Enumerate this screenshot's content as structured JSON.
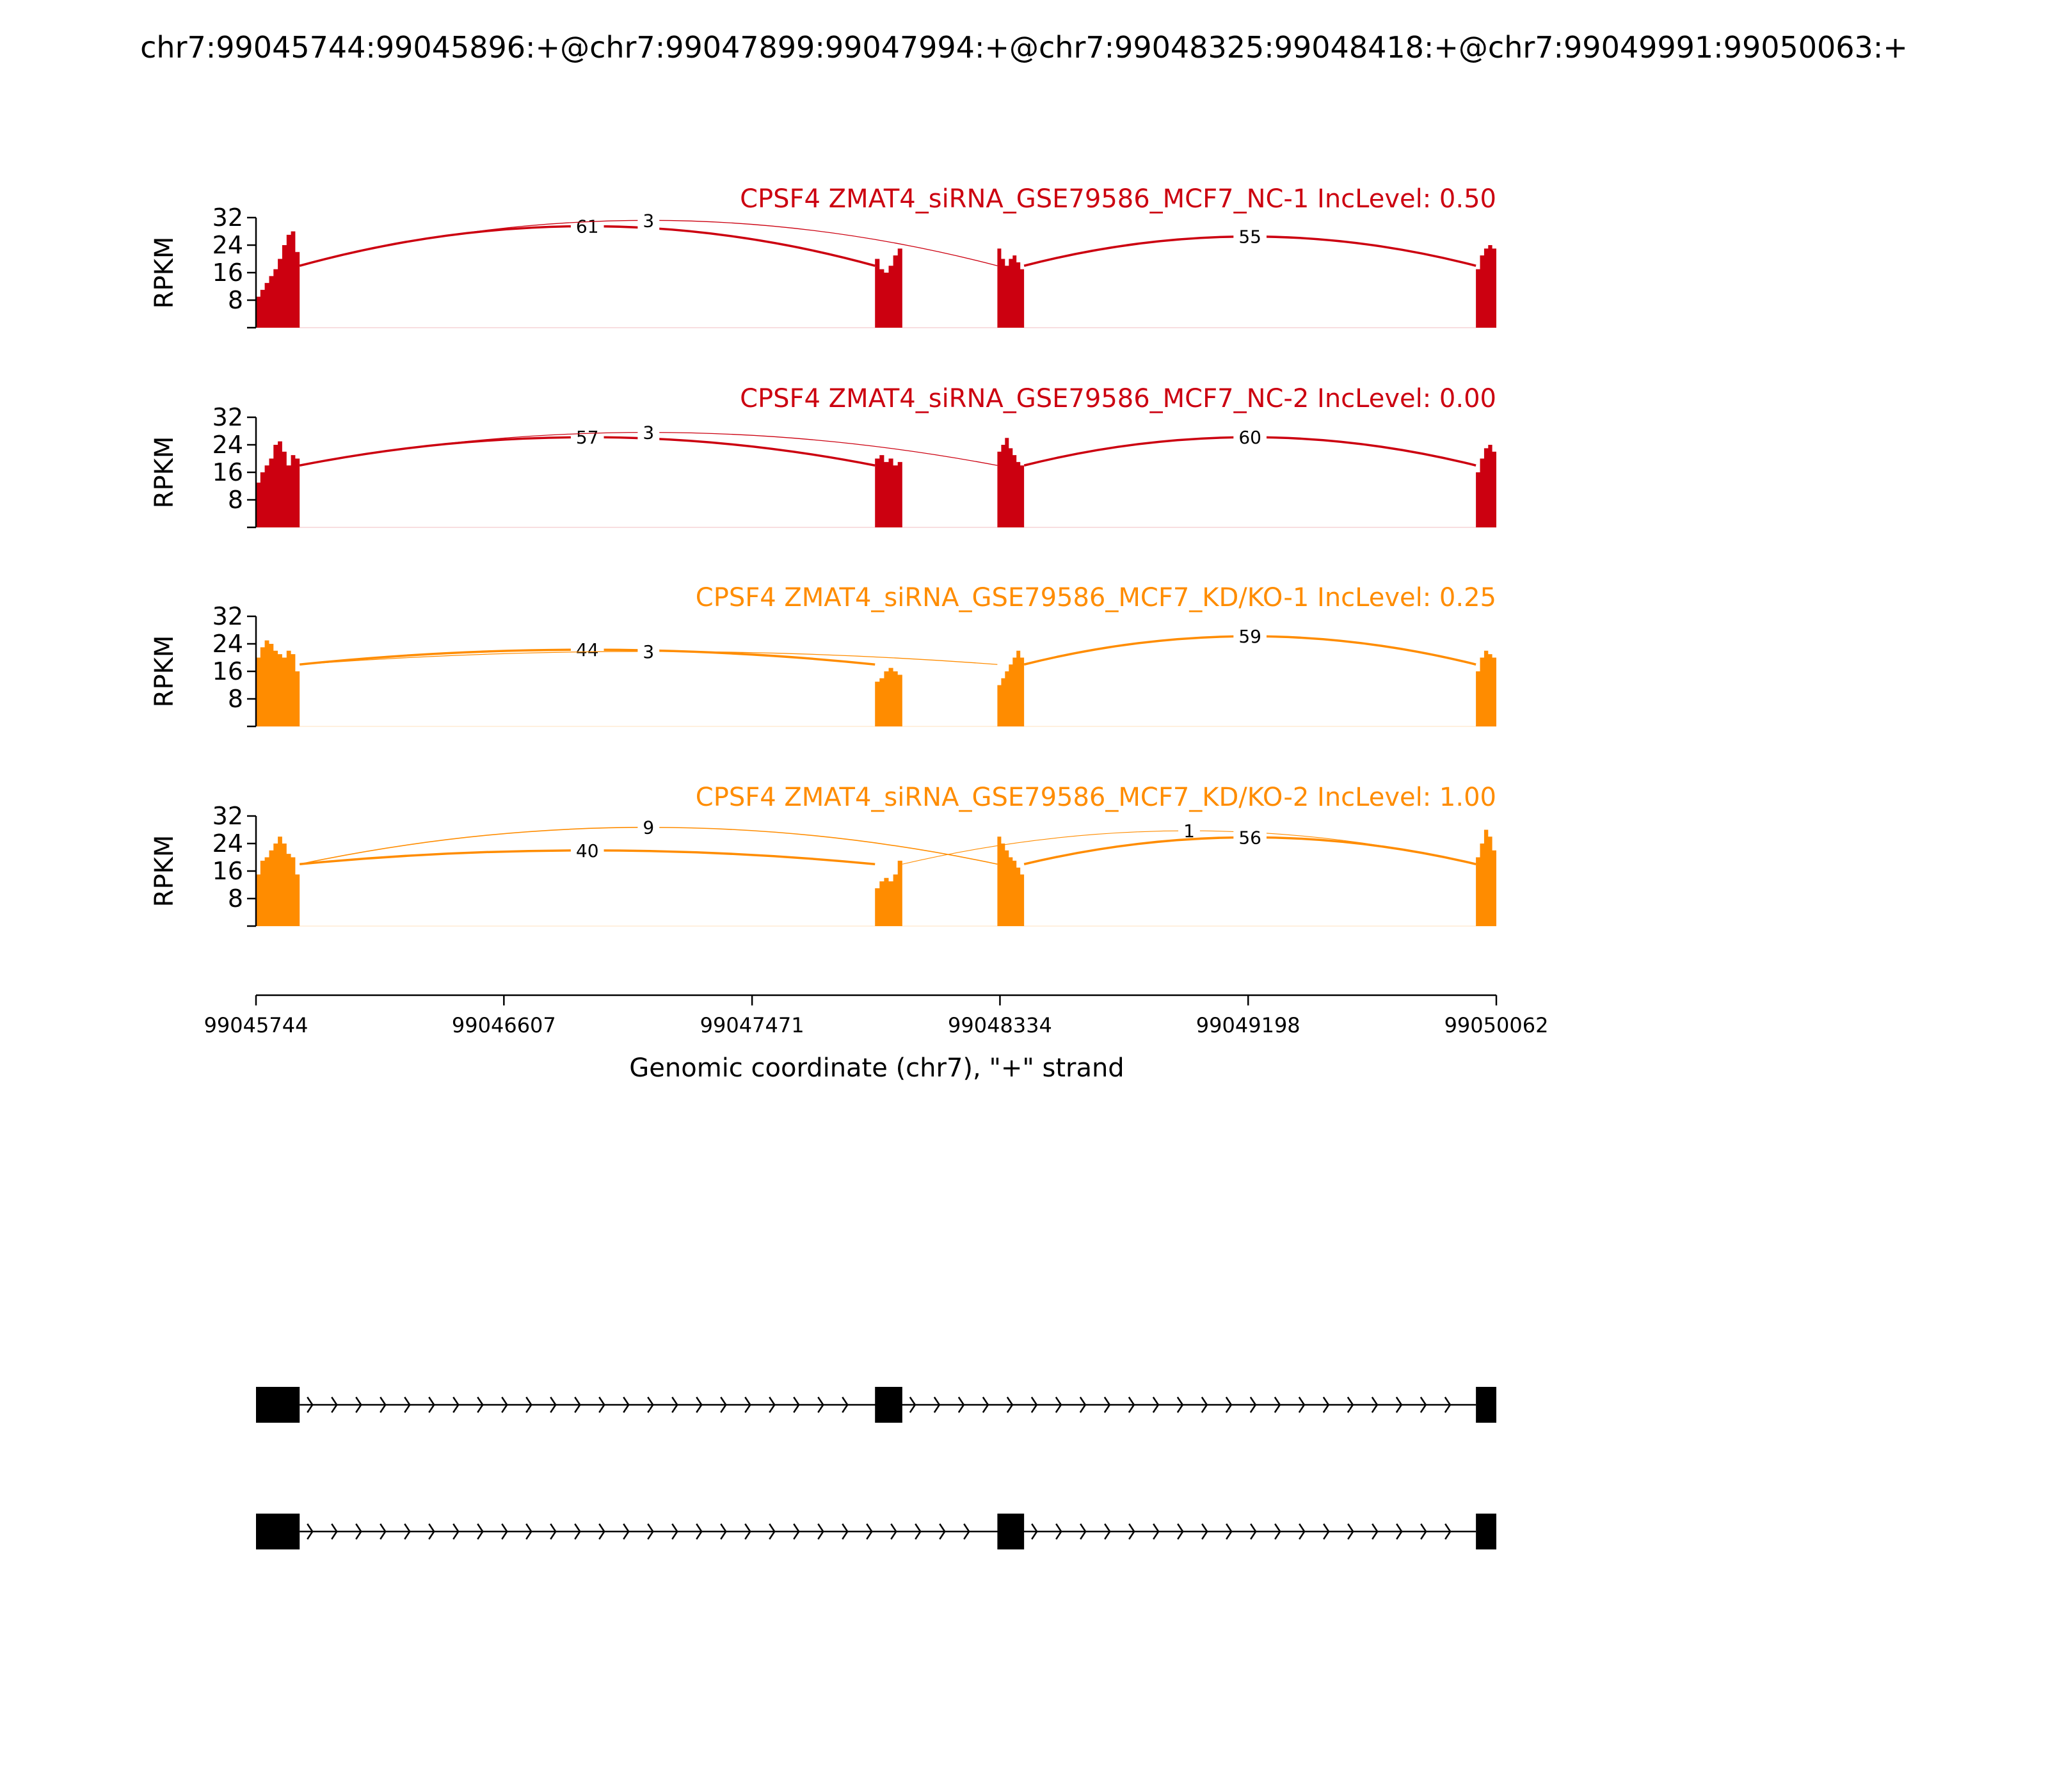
{
  "title": "chr7:99045744:99045896:+@chr7:99047899:99047994:+@chr7:99048325:99048418:+@chr7:99049991:99050063:+",
  "colors": {
    "nc": "#cc0010",
    "kd": "#ff8c00",
    "axis": "#000000"
  },
  "chart_data": {
    "type": "area",
    "xlabel": "Genomic coordinate (chr7), \"+\" strand",
    "ylabel": "RPKM",
    "xlim": [
      99045744,
      99050062
    ],
    "x_ticks": [
      99045744,
      99046607,
      99047471,
      99048334,
      99049198,
      99050062
    ],
    "x_tick_labels": [
      "99045744",
      "99046607",
      "99047471",
      "99048334",
      "99049198",
      "99050062"
    ],
    "ylim": [
      0,
      32
    ],
    "y_ticks": [
      8,
      16,
      24,
      32
    ],
    "y_tick_labels": [
      "8",
      "16",
      "24",
      "32"
    ],
    "exons": [
      [
        99045744,
        99045896
      ],
      [
        99047899,
        99047994
      ],
      [
        99048325,
        99048418
      ],
      [
        99049991,
        99050062
      ]
    ],
    "panels": [
      {
        "label": "CPSF4 ZMAT4_siRNA_GSE79586_MCF7_NC-1 IncLevel: 0.50",
        "group": "nc",
        "coverage": [
          {
            "start": 99045744,
            "end": 99045896,
            "values": [
              9,
              11,
              13,
              15,
              17,
              20,
              24,
              27,
              28,
              22
            ]
          },
          {
            "start": 99047899,
            "end": 99047994,
            "values": [
              20,
              17,
              16,
              18,
              21,
              23
            ]
          },
          {
            "start": 99048325,
            "end": 99048418,
            "values": [
              23,
              20,
              18,
              20,
              21,
              19,
              17
            ]
          },
          {
            "start": 99049991,
            "end": 99050062,
            "values": [
              17,
              21,
              23,
              24,
              23
            ]
          }
        ],
        "junctions": [
          {
            "from": 99045896,
            "to": 99047899,
            "count": "61",
            "height": 29.5,
            "width": 2.2
          },
          {
            "from": 99045896,
            "to": 99048325,
            "count": "3",
            "height": 31.2,
            "width": 0.8
          },
          {
            "from": 99048418,
            "to": 99049991,
            "count": "55",
            "height": 26.5,
            "width": 2.2
          }
        ]
      },
      {
        "label": "CPSF4 ZMAT4_siRNA_GSE79586_MCF7_NC-2 IncLevel: 0.00",
        "group": "nc",
        "coverage": [
          {
            "start": 99045744,
            "end": 99045896,
            "values": [
              13,
              16,
              18,
              20,
              24,
              25,
              22,
              18,
              21,
              20
            ]
          },
          {
            "start": 99047899,
            "end": 99047994,
            "values": [
              20,
              21,
              19,
              20,
              18,
              19
            ]
          },
          {
            "start": 99048325,
            "end": 99048418,
            "values": [
              22,
              24,
              26,
              23,
              21,
              19,
              18
            ]
          },
          {
            "start": 99049991,
            "end": 99050062,
            "values": [
              16,
              20,
              23,
              24,
              22
            ]
          }
        ],
        "junctions": [
          {
            "from": 99045896,
            "to": 99047899,
            "count": "57",
            "height": 26.2,
            "width": 2.2
          },
          {
            "from": 99045896,
            "to": 99048325,
            "count": "3",
            "height": 27.6,
            "width": 0.8
          },
          {
            "from": 99048418,
            "to": 99049991,
            "count": "60",
            "height": 26.2,
            "width": 2.2
          }
        ]
      },
      {
        "label": "CPSF4 ZMAT4_siRNA_GSE79586_MCF7_KD/KO-1 IncLevel: 0.25",
        "group": "kd",
        "coverage": [
          {
            "start": 99045744,
            "end": 99045896,
            "values": [
              20,
              23,
              25,
              24,
              22,
              21,
              20,
              22,
              21,
              16
            ]
          },
          {
            "start": 99047899,
            "end": 99047994,
            "values": [
              13,
              14,
              16,
              17,
              16,
              15
            ]
          },
          {
            "start": 99048325,
            "end": 99048418,
            "values": [
              12,
              14,
              16,
              18,
              20,
              22,
              20
            ]
          },
          {
            "start": 99049991,
            "end": 99050062,
            "values": [
              16,
              20,
              22,
              21,
              20
            ]
          }
        ],
        "junctions": [
          {
            "from": 99045896,
            "to": 99047899,
            "count": "44",
            "height": 22.3,
            "width": 2.2
          },
          {
            "from": 99045896,
            "to": 99048325,
            "count": "3",
            "height": 21.8,
            "width": 0.8
          },
          {
            "from": 99048418,
            "to": 99049991,
            "count": "59",
            "height": 26.2,
            "width": 2.2
          }
        ]
      },
      {
        "label": "CPSF4 ZMAT4_siRNA_GSE79586_MCF7_KD/KO-2 IncLevel: 1.00",
        "group": "kd",
        "coverage": [
          {
            "start": 99045744,
            "end": 99045896,
            "values": [
              15,
              19,
              20,
              22,
              24,
              26,
              24,
              21,
              20,
              15
            ]
          },
          {
            "start": 99047899,
            "end": 99047994,
            "values": [
              11,
              13,
              14,
              13,
              15,
              19
            ]
          },
          {
            "start": 99048325,
            "end": 99048418,
            "values": [
              26,
              24,
              22,
              20,
              19,
              17,
              15
            ]
          },
          {
            "start": 99049991,
            "end": 99050062,
            "values": [
              20,
              24,
              28,
              26,
              22
            ]
          }
        ],
        "junctions": [
          {
            "from": 99045896,
            "to": 99047899,
            "count": "40",
            "height": 22.0,
            "width": 2.2
          },
          {
            "from": 99045896,
            "to": 99048325,
            "count": "9",
            "height": 28.7,
            "width": 1.0
          },
          {
            "from": 99047994,
            "to": 99049991,
            "count": "1",
            "height": 27.7,
            "width": 0.7
          },
          {
            "from": 99048418,
            "to": 99049991,
            "count": "56",
            "height": 25.8,
            "width": 2.2
          }
        ]
      }
    ],
    "isoforms": [
      [
        [
          99045744,
          99045896
        ],
        [
          99047899,
          99047994
        ],
        [
          99049991,
          99050062
        ]
      ],
      [
        [
          99045744,
          99045896
        ],
        [
          99048325,
          99048418
        ],
        [
          99049991,
          99050062
        ]
      ]
    ]
  }
}
